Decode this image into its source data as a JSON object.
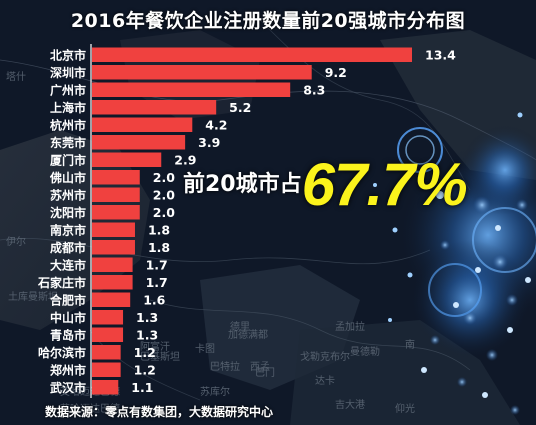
{
  "title": "2016年餐饮企业注册数量前20强城市分布图",
  "callout": {
    "label": "前20城市占",
    "value": "67.7%"
  },
  "source": "数据来源：零点有数集团，大数据研究中心",
  "map_labels": [
    "塔什",
    "伊尔",
    "土库曼斯坦",
    "阿富汗",
    "巴基斯坦",
    "德里",
    "苏库尔",
    "艾哈迈达巴德",
    "加德满都",
    "戈勒克布尔",
    "卡图",
    "达卡",
    "西孟",
    "巴特拉",
    "吉大港",
    "曼德勒",
    "巴门",
    "南",
    "仰光",
    "孟加拉",
    "艾哈迈达巴德"
  ],
  "colors": {
    "bar": "#f0413f",
    "label": "#ffffff",
    "value": "#ffffff",
    "axis": "#ffffff",
    "highlight": "#fbf31c"
  },
  "chart_data": {
    "type": "bar",
    "orientation": "horizontal",
    "title": "2016年餐饮企业注册数量前20强城市分布图",
    "categories": [
      "北京市",
      "深圳市",
      "广州市",
      "上海市",
      "杭州市",
      "东莞市",
      "厦门市",
      "佛山市",
      "苏州市",
      "沈阳市",
      "南京市",
      "成都市",
      "大连市",
      "石家庄市",
      "合肥市",
      "中山市",
      "青岛市",
      "哈尔滨市",
      "郑州市",
      "武汉市"
    ],
    "values": [
      13.4,
      9.2,
      8.3,
      5.2,
      4.2,
      3.9,
      2.9,
      2.0,
      2.0,
      2.0,
      1.8,
      1.8,
      1.7,
      1.7,
      1.6,
      1.3,
      1.3,
      1.2,
      1.2,
      1.1
    ],
    "value_labels": [
      "13.4",
      "9.2",
      "8.3",
      "5.2",
      "4.2",
      "3.9",
      "2.9",
      "2.0",
      "2.0",
      "2.0",
      "1.8",
      "1.8",
      "1.7",
      "1.7",
      "1.6",
      "1.3",
      "1.3",
      "1.2",
      "1.2",
      "1.1"
    ],
    "xlim": [
      0,
      13.4
    ],
    "grid": false,
    "legend": "none"
  }
}
